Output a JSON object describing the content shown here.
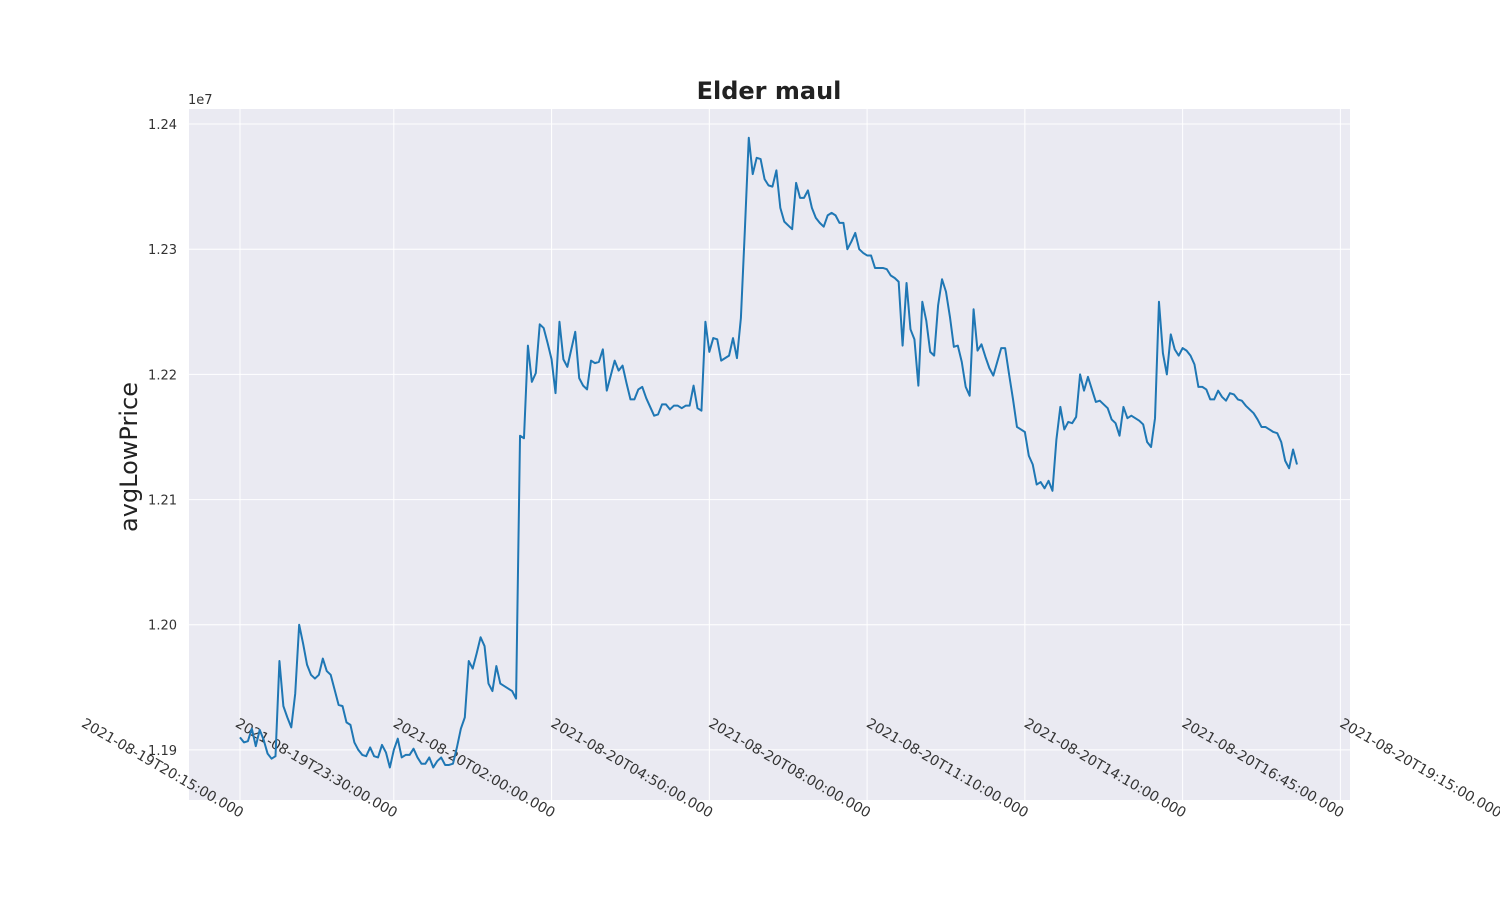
{
  "chart_data": {
    "type": "line",
    "title": "Elder maul",
    "xlabel": "",
    "ylabel": "avgLowPrice",
    "y_offset_label": "1e7",
    "ylim": [
      1.186,
      1.2412
    ],
    "yticks": [
      1.19,
      1.2,
      1.21,
      1.22,
      1.23,
      1.24
    ],
    "ytick_labels": [
      "1.19",
      "1.20",
      "1.21",
      "1.22",
      "1.23",
      "1.24"
    ],
    "xtick_index": [
      0,
      39,
      79,
      119,
      159,
      199,
      239,
      279,
      319
    ],
    "xtick_labels": [
      "2021-08-19T20:15:00.000",
      "2021-08-19T23:30:00.000",
      "2021-08-20T02:00:00.000",
      "2021-08-20T04:50:00.000",
      "2021-08-20T08:00:00.000",
      "2021-08-20T11:10:00.000",
      "2021-08-20T14:10:00.000",
      "2021-08-20T16:45:00.000",
      "2021-08-20T19:15:00.000"
    ],
    "grid": true,
    "legend": "none",
    "series": [
      {
        "color": "#1f77b4",
        "values": [
          1.191,
          1.1906,
          1.1907,
          1.1917,
          1.1903,
          1.1916,
          1.1908,
          1.1897,
          1.1893,
          1.1895,
          1.1971,
          1.1935,
          1.1926,
          1.1918,
          1.1945,
          1.2,
          1.1985,
          1.1968,
          1.196,
          1.1957,
          1.196,
          1.1973,
          1.1963,
          1.196,
          1.1948,
          1.1936,
          1.1935,
          1.1922,
          1.192,
          1.1906,
          1.19,
          1.1896,
          1.1895,
          1.1902,
          1.1895,
          1.1894,
          1.1904,
          1.1898,
          1.1886,
          1.19,
          1.1909,
          1.1894,
          1.1896,
          1.1896,
          1.1901,
          1.1894,
          1.1889,
          1.1889,
          1.1894,
          1.1886,
          1.1891,
          1.1894,
          1.1888,
          1.1888,
          1.1889,
          1.1902,
          1.1917,
          1.1926,
          1.1971,
          1.1965,
          1.1977,
          1.199,
          1.1983,
          1.1953,
          1.1947,
          1.1967,
          1.1953,
          1.1951,
          1.1949,
          1.1947,
          1.1941,
          1.2151,
          1.2149,
          1.2223,
          1.2194,
          1.2201,
          1.224,
          1.2237,
          1.2225,
          1.2212,
          1.2185,
          1.2242,
          1.2212,
          1.2206,
          1.222,
          1.2234,
          1.2197,
          1.2191,
          1.2188,
          1.2211,
          1.2209,
          1.221,
          1.222,
          1.2187,
          1.2199,
          1.2211,
          1.2203,
          1.2207,
          1.2193,
          1.218,
          1.218,
          1.2188,
          1.219,
          1.2181,
          1.2174,
          1.2167,
          1.2168,
          1.2176,
          1.2176,
          1.2172,
          1.2175,
          1.2175,
          1.2173,
          1.2175,
          1.2175,
          1.2191,
          1.2173,
          1.2171,
          1.2242,
          1.2218,
          1.2229,
          1.2228,
          1.2211,
          1.2213,
          1.2215,
          1.2229,
          1.2213,
          1.2245,
          1.2315,
          1.2389,
          1.236,
          1.2373,
          1.2372,
          1.2356,
          1.2351,
          1.235,
          1.2363,
          1.2333,
          1.2322,
          1.2319,
          1.2316,
          1.2353,
          1.2341,
          1.2341,
          1.2347,
          1.2333,
          1.2325,
          1.2321,
          1.2318,
          1.2327,
          1.2329,
          1.2327,
          1.2321,
          1.2321,
          1.23,
          1.2306,
          1.2313,
          1.23,
          1.2297,
          1.2295,
          1.2295,
          1.2285,
          1.2285,
          1.2285,
          1.2284,
          1.2279,
          1.2277,
          1.2274,
          1.2223,
          1.2273,
          1.2236,
          1.2228,
          1.2191,
          1.2258,
          1.2243,
          1.2218,
          1.2215,
          1.2255,
          1.2276,
          1.2266,
          1.2246,
          1.2222,
          1.2223,
          1.221,
          1.219,
          1.2183,
          1.2252,
          1.2219,
          1.2224,
          1.2214,
          1.2205,
          1.2199,
          1.221,
          1.2221,
          1.2221,
          1.22,
          1.218,
          1.2158,
          1.2156,
          1.2154,
          1.2135,
          1.2128,
          1.2112,
          1.2114,
          1.2109,
          1.2115,
          1.2107,
          1.2148,
          1.2174,
          1.2156,
          1.2162,
          1.2161,
          1.2166,
          1.22,
          1.2187,
          1.2198,
          1.2188,
          1.2178,
          1.2179,
          1.2176,
          1.2173,
          1.2164,
          1.2161,
          1.2151,
          1.2174,
          1.2165,
          1.2167,
          1.2165,
          1.2163,
          1.216,
          1.2146,
          1.2142,
          1.2165,
          1.2258,
          1.2217,
          1.22,
          1.2232,
          1.222,
          1.2215,
          1.2221,
          1.2219,
          1.2215,
          1.2208,
          1.219,
          1.219,
          1.2188,
          1.218,
          1.218,
          1.2187,
          1.2182,
          1.2179,
          1.2185,
          1.2184,
          1.218,
          1.2179,
          1.2175,
          1.2172,
          1.2169,
          1.2164,
          1.2158,
          1.2158,
          1.2156,
          1.2154,
          1.2153,
          1.2146,
          1.2131,
          1.2125,
          1.214,
          1.2128
        ]
      }
    ]
  }
}
